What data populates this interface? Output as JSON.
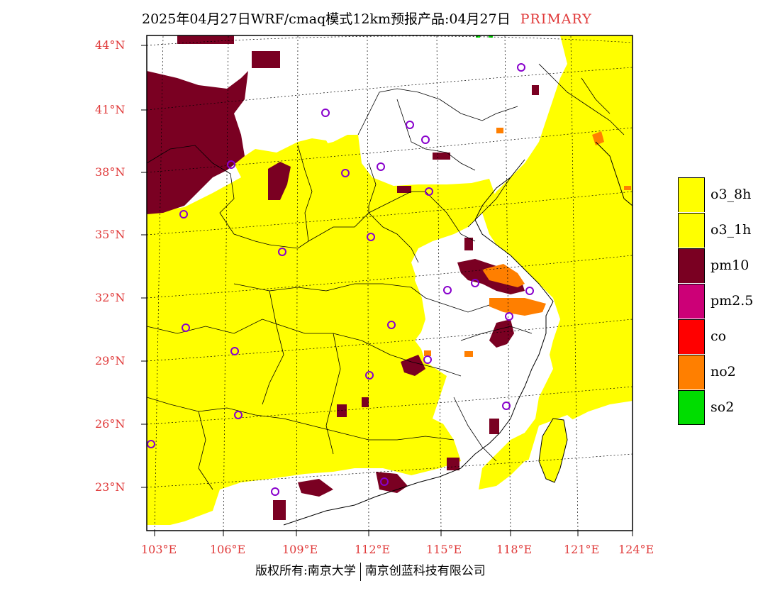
{
  "title": {
    "text": "2025年04月27日WRF/cmaq模式12km预报产品:04月27日",
    "tag": "PRIMARY"
  },
  "axes": {
    "lat_labels": [
      "44°N",
      "41°N",
      "38°N",
      "35°N",
      "32°N",
      "29°N",
      "26°N",
      "23°N"
    ],
    "lon_labels": [
      "103°E",
      "106°E",
      "109°E",
      "112°E",
      "115°E",
      "118°E",
      "121°E",
      "124°E"
    ]
  },
  "legend": [
    {
      "label": "o3_8h",
      "color": "#ffff00"
    },
    {
      "label": "o3_1h",
      "color": "#ffff00"
    },
    {
      "label": "pm10",
      "color": "#7a0022"
    },
    {
      "label": "pm2.5",
      "color": "#cc0077"
    },
    {
      "label": "co",
      "color": "#ff0000"
    },
    {
      "label": "no2",
      "color": "#ff7f00"
    },
    {
      "label": "so2",
      "color": "#00dd00"
    }
  ],
  "footer": {
    "left": "版权所有:南京大学",
    "right": "南京创蓝科技有限公司"
  },
  "colors": {
    "axis_label": "#e03a3a",
    "primary_tag": "#e03a3a"
  }
}
